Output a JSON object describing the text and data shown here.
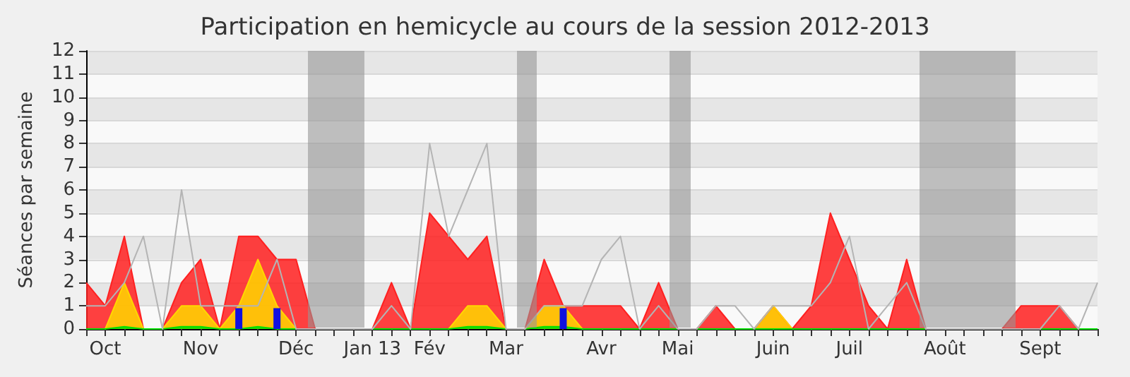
{
  "chart_data": {
    "type": "area",
    "title": "Participation en hemicycle au cours de la session 2012-2013",
    "ylabel": "Séances par semaine",
    "categories": [
      null,
      "Oct",
      null,
      null,
      null,
      null,
      "Nov",
      null,
      null,
      null,
      null,
      "Déc",
      null,
      null,
      null,
      "Jan 13",
      null,
      null,
      "Fév",
      null,
      null,
      null,
      "Mar",
      null,
      null,
      null,
      null,
      "Avr",
      null,
      null,
      null,
      "Mai",
      null,
      null,
      null,
      null,
      "Juin",
      null,
      null,
      null,
      "Juil",
      null,
      null,
      null,
      null,
      "Août",
      null,
      null,
      null,
      null,
      "Sept",
      null,
      null,
      null
    ],
    "ylim": [
      0,
      12
    ],
    "yticks": [
      0,
      1,
      2,
      3,
      4,
      5,
      6,
      7,
      8,
      9,
      10,
      11,
      12
    ],
    "grid": "y",
    "marker": "none",
    "series": [
      {
        "type": "line",
        "color": "#b4b4b4",
        "values": [
          1,
          1,
          2,
          4,
          0,
          6,
          1,
          1,
          1,
          1,
          3,
          0,
          0,
          0,
          0,
          0,
          1,
          0,
          8,
          4,
          6,
          8,
          0,
          0,
          1,
          1,
          1,
          3,
          4,
          0,
          1,
          0,
          0,
          1,
          1,
          0,
          1,
          1,
          1,
          2,
          4,
          0,
          1,
          2,
          0,
          0,
          0,
          0,
          0,
          0,
          0,
          1,
          0,
          2
        ]
      },
      {
        "color": "#ff2020",
        "values": [
          2,
          1,
          4,
          0,
          0,
          2,
          3,
          0,
          4,
          4,
          3,
          3,
          0,
          0,
          0,
          0,
          2,
          0,
          5,
          4,
          3,
          4,
          0,
          0,
          3,
          1,
          1,
          1,
          1,
          0,
          2,
          0,
          0,
          1,
          0,
          0,
          1,
          0,
          1,
          5,
          3,
          1,
          0,
          3,
          0,
          0,
          0,
          0,
          0,
          1,
          1,
          1,
          0,
          0
        ]
      },
      {
        "color": "#ffd700",
        "values": [
          0,
          0,
          2,
          0,
          0,
          1,
          1,
          0,
          1,
          3,
          1,
          0,
          0,
          0,
          0,
          0,
          0,
          0,
          0,
          0,
          1,
          1,
          0,
          0,
          1,
          1,
          0,
          0,
          0,
          0,
          0,
          0,
          0,
          0,
          0,
          0,
          1,
          0,
          0,
          0,
          0,
          0,
          0,
          0,
          0,
          0,
          0,
          0,
          0,
          0,
          0,
          0,
          0,
          0
        ]
      },
      {
        "color": "#00e000",
        "values": [
          0,
          0,
          0.1,
          0,
          0,
          0.1,
          0.1,
          0,
          0,
          0.1,
          0,
          0,
          0,
          0,
          0,
          0,
          0,
          0,
          0,
          0,
          0.1,
          0.1,
          0,
          0,
          0.1,
          0.1,
          0,
          0,
          0,
          0,
          0,
          0,
          0,
          0,
          0,
          0,
          0,
          0,
          0,
          0,
          0,
          0,
          0,
          0,
          0,
          0,
          0,
          0,
          0,
          0,
          0,
          0,
          0,
          0
        ]
      },
      {
        "type": "bar",
        "color": "#1010e0",
        "values": [
          null,
          null,
          null,
          null,
          null,
          null,
          null,
          null,
          0.9,
          null,
          0.9,
          null,
          null,
          null,
          null,
          null,
          null,
          null,
          null,
          null,
          null,
          null,
          null,
          null,
          null,
          0.9,
          null,
          null,
          null,
          null,
          null,
          null,
          null,
          null,
          null,
          null,
          null,
          null,
          null,
          null,
          null,
          null,
          null,
          null,
          null,
          null,
          null,
          null,
          null,
          null,
          null,
          null,
          null,
          null
        ]
      }
    ]
  }
}
